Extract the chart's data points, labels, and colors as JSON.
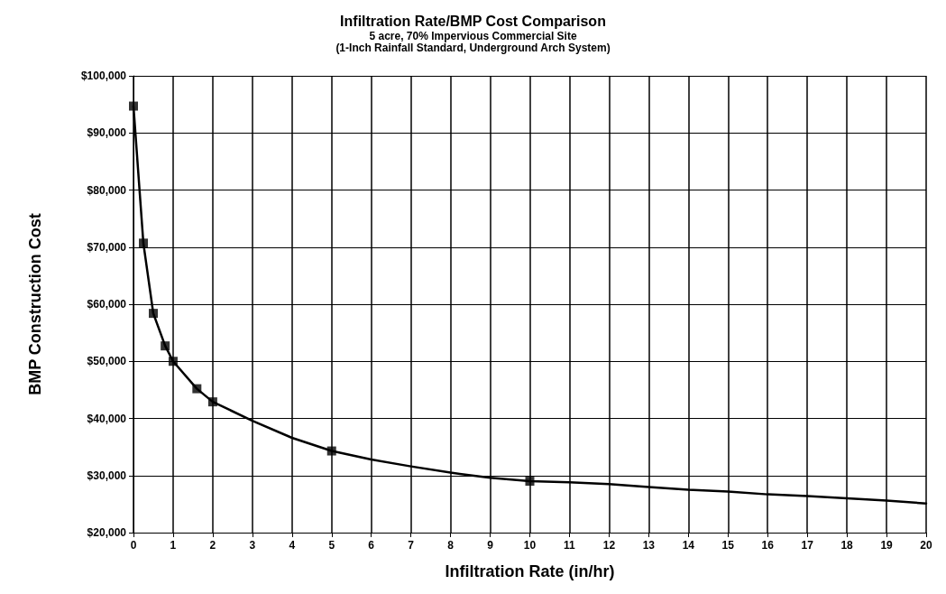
{
  "chart_data": {
    "type": "line",
    "title": "Infiltration Rate/BMP Cost Comparison",
    "subtitle": "5 acre, 70% Impervious Commercial Site\n(1-Inch Rainfall Standard, Underground Arch System)",
    "xlabel": "Infiltration Rate (in/hr)",
    "ylabel": "BMP Construction Cost",
    "series": [
      {
        "color": "#000000",
        "marker": "none",
        "x": [
          0,
          0.25,
          0.5,
          0.8,
          1,
          1.6,
          2,
          3,
          4,
          5,
          6,
          7,
          8,
          9,
          10,
          11,
          12,
          13,
          14,
          15,
          16,
          17,
          18,
          19,
          20
        ],
        "values": [
          94700,
          70700,
          58400,
          52700,
          50000,
          45200,
          42900,
          39600,
          36600,
          34300,
          32800,
          31600,
          30500,
          29600,
          29000,
          28800,
          28500,
          28000,
          27500,
          27200,
          26700,
          26400,
          26000,
          25600,
          25100
        ]
      },
      {
        "type": "scatter",
        "color": "#000000",
        "marker": "square",
        "x": [
          0,
          0.25,
          0.5,
          0.8,
          1,
          1.6,
          2,
          5,
          10
        ],
        "values": [
          94700,
          70700,
          58400,
          52700,
          50000,
          45200,
          42900,
          34300,
          29000
        ]
      }
    ],
    "xlim": [
      0,
      20
    ],
    "xticks": [
      0,
      1,
      2,
      3,
      4,
      5,
      6,
      7,
      8,
      9,
      10,
      11,
      12,
      13,
      14,
      15,
      16,
      17,
      18,
      19,
      20
    ],
    "ylim": [
      20000,
      100000
    ],
    "yticks": [
      {
        "value": 20000,
        "label": "$20,000"
      },
      {
        "value": 30000,
        "label": "$30,000"
      },
      {
        "value": 40000,
        "label": "$40,000"
      },
      {
        "value": 50000,
        "label": "$50,000"
      },
      {
        "value": 60000,
        "label": "$60,000"
      },
      {
        "value": 70000,
        "label": "$70,000"
      },
      {
        "value": 80000,
        "label": "$80,000"
      },
      {
        "value": 90000,
        "label": "$90,000"
      },
      {
        "value": 100000,
        "label": "$100,000"
      }
    ],
    "grid": true
  }
}
